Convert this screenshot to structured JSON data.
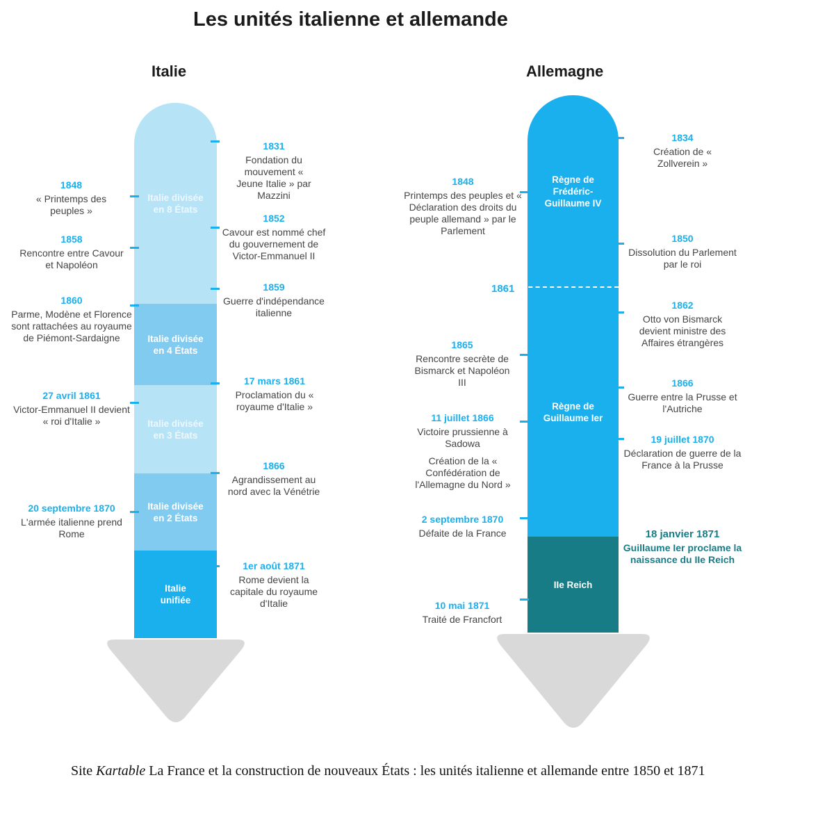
{
  "title": "Les unités italienne et allemande",
  "italy": {
    "title": "Italie",
    "segments": [
      {
        "label": "Italie divisée en 8 États"
      },
      {
        "label": "Italie divisée en 4 États"
      },
      {
        "label": "Italie divisée en 3 États"
      },
      {
        "label": "Italie divisée en 2 États"
      },
      {
        "label": "Italie unifiée"
      }
    ],
    "events_left": [
      {
        "date": "1848",
        "text": "« Printemps des peuples »"
      },
      {
        "date": "1858",
        "text": "Rencontre entre Cavour et Napoléon"
      },
      {
        "date": "1860",
        "text": "Parme, Modène et Florence sont rattachées au royaume de Piémont-Sardaigne"
      },
      {
        "date": "27 avril 1861",
        "text": "Victor-Emmanuel II devient « roi d'Italie »"
      },
      {
        "date": "20 septembre 1870",
        "text": "L'armée italienne prend Rome"
      }
    ],
    "events_right": [
      {
        "date": "1831",
        "text": "Fondation du mouvement « Jeune Italie » par Mazzini"
      },
      {
        "date": "1852",
        "text": "Cavour est nommé chef du gouvernement de Victor-Emmanuel II"
      },
      {
        "date": "1859",
        "text": "Guerre d'indépendance italienne"
      },
      {
        "date": "17 mars 1861",
        "text": "Proclamation du « royaume d'Italie »"
      },
      {
        "date": "1866",
        "text": "Agrandissement au nord avec la Vénétrie"
      },
      {
        "date": "1er août 1871",
        "text": "Rome devient la capitale du royaume d'Italie"
      }
    ]
  },
  "germany": {
    "title": "Allemagne",
    "segments": [
      {
        "label": "Règne de Frédéric-Guillaume IV"
      },
      {
        "label": "Règne de Guillaume Ier"
      },
      {
        "label": "IIe Reich"
      }
    ],
    "divider_label": "1861",
    "events_left": [
      {
        "date": "1848",
        "text": "Printemps des peuples et « Déclaration des droits du peuple allemand » par le Parlement"
      },
      {
        "date": "1865",
        "text": "Rencontre secrète de Bismarck et Napoléon III"
      },
      {
        "date": "11 juillet 1866",
        "text": "Victoire prussienne à Sadowa"
      },
      {
        "date": "",
        "text": "Création de la « Confédération de l'Allemagne du Nord »"
      },
      {
        "date": "2 septembre 1870",
        "text": "Défaite de la France"
      },
      {
        "date": "10 mai 1871",
        "text": "Traité de Francfort"
      }
    ],
    "events_right": [
      {
        "date": "1834",
        "text": "Création de « Zollverein »"
      },
      {
        "date": "1850",
        "text": "Dissolution du Parlement par le roi"
      },
      {
        "date": "1862",
        "text": "Otto von Bismarck devient ministre des Affaires étrangères"
      },
      {
        "date": "1866",
        "text": "Guerre entre la Prusse et l'Autriche"
      },
      {
        "date": "19 juillet 1870",
        "text": "Déclaration de guerre de la France à la Prusse"
      },
      {
        "date": "18 janvier 1871",
        "text": "Guillaume Ier proclame la naissance du IIe Reich"
      }
    ]
  },
  "caption": {
    "prefix": "Site ",
    "source": "Kartable",
    "rest": " La France et la construction de nouveaux États : les unités italienne et allemande entre 1850 et 1871"
  },
  "colors": {
    "accent": "#1ab0ee",
    "pale": "#b7e3f7",
    "mid": "#80cbef",
    "reich": "#177c86",
    "arrow": "#d9d9d9"
  }
}
